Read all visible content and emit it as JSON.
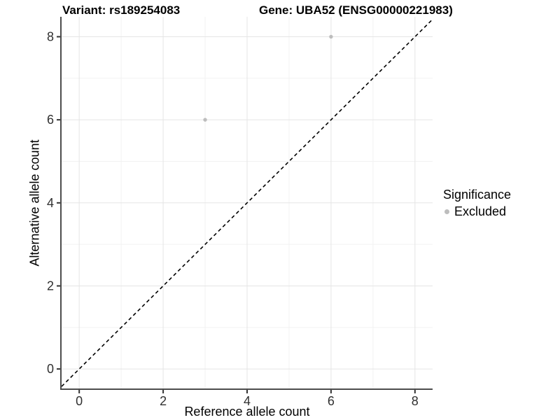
{
  "title_left": "Variant: rs189254083",
  "title_right": "Gene: UBA52 (ENSG00000221983)",
  "chart_data": {
    "type": "scatter",
    "xlabel": "Reference allele count",
    "ylabel": "Alternative allele count",
    "xlim": [
      -0.42,
      8.42
    ],
    "ylim": [
      -0.47,
      8.48
    ],
    "xticks": [
      0,
      2,
      4,
      6,
      8
    ],
    "yticks": [
      0,
      2,
      4,
      6,
      8
    ],
    "minor_gridlines_x": [
      1,
      3,
      5,
      7
    ],
    "minor_gridlines_y": [
      1,
      3,
      5,
      7
    ],
    "grid": true,
    "identity_line": {
      "style": "dashed",
      "color": "#000000",
      "equation": "y = x"
    },
    "series": [
      {
        "name": "Excluded",
        "color": "#bdbdbd",
        "points": [
          {
            "x": 3,
            "y": 6
          },
          {
            "x": 6,
            "y": 8
          }
        ]
      }
    ],
    "legend": {
      "title": "Significance",
      "position": "right",
      "items": [
        {
          "label": "Excluded",
          "color": "#bdbdbd"
        }
      ]
    }
  },
  "colors": {
    "background": "#ffffff",
    "axis_line": "#4d4d4d",
    "tick_mark": "#333333",
    "tick_label": "#303030",
    "major_grid": "#e5e5e5",
    "minor_grid": "#f2f2f2"
  }
}
